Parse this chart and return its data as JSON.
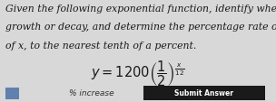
{
  "bg_color": "#d8d8d8",
  "content_bg": "#f0eeea",
  "text_color": "#1a1a1a",
  "line1": "Given the following exponential function, identify whether the change represents",
  "line2": "growth or decay, and determine the percentage rate of increase or decrease per unit",
  "line3": "of x, to the nearest tenth of a percent.",
  "body_fontsize": 7.8,
  "eq_fontsize": 10.5,
  "bottom_bar_color": "#c8c8c8",
  "submit_btn_color": "#1a1a1a",
  "submit_btn_text": "Submit Answer",
  "pct_label": "% increase",
  "figsize": [
    3.04,
    1.14
  ],
  "dpi": 100
}
